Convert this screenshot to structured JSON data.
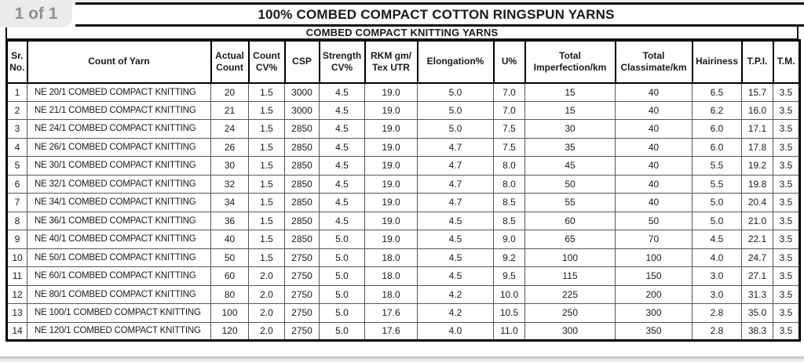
{
  "viewer": {
    "page_indicator": "1 of 1"
  },
  "document": {
    "title": "100% COMBED COMPACT COTTON RINGSPUN YARNS",
    "subtitle": "COMBED COMPACT KNITTING YARNS"
  },
  "table": {
    "columns": [
      "Sr.\nNo.",
      "Count of Yarn",
      "Actual\nCount",
      "Count\nCV%",
      "CSP",
      "Strength\nCV%",
      "RKM gm/\nTex UTR",
      "Elongation%",
      "U%",
      "Total\nImperfection/km",
      "Total\nClassimate/km",
      "Hairiness",
      "T.P.I.",
      "T.M."
    ],
    "rows": [
      [
        "1",
        "NE 20/1 COMBED COMPACT KNITTING",
        "20",
        "1.5",
        "3000",
        "4.5",
        "19.0",
        "5.0",
        "7.0",
        "15",
        "40",
        "6.5",
        "15.7",
        "3.5"
      ],
      [
        "2",
        "NE 21/1 COMBED COMPACT KNITTING",
        "21",
        "1.5",
        "3000",
        "4.5",
        "19.0",
        "5.0",
        "7.0",
        "15",
        "40",
        "6.2",
        "16.0",
        "3.5"
      ],
      [
        "3",
        "NE 24/1 COMBED COMPACT KNITTING",
        "24",
        "1.5",
        "2850",
        "4.5",
        "19.0",
        "5.0",
        "7.5",
        "30",
        "40",
        "6.0",
        "17.1",
        "3.5"
      ],
      [
        "4",
        "NE 26/1 COMBED COMPACT KNITTING",
        "26",
        "1.5",
        "2850",
        "4.5",
        "19.0",
        "4.7",
        "7.5",
        "35",
        "40",
        "6.0",
        "17.8",
        "3.5"
      ],
      [
        "5",
        "NE 30/1 COMBED COMPACT KNITTING",
        "30",
        "1.5",
        "2850",
        "4.5",
        "19.0",
        "4.7",
        "8.0",
        "45",
        "40",
        "5.5",
        "19.2",
        "3.5"
      ],
      [
        "6",
        "NE 32/1 COMBED COMPACT KNITTING",
        "32",
        "1.5",
        "2850",
        "4.5",
        "19.0",
        "4.7",
        "8.0",
        "50",
        "40",
        "5.5",
        "19.8",
        "3.5"
      ],
      [
        "7",
        "NE 34/1 COMBED COMPACT KNITTING",
        "34",
        "1.5",
        "2850",
        "4.5",
        "19.0",
        "4.7",
        "8.5",
        "55",
        "40",
        "5.0",
        "20.4",
        "3.5"
      ],
      [
        "8",
        "NE 36/1 COMBED COMPACT KNITTING",
        "36",
        "1.5",
        "2850",
        "4.5",
        "19.0",
        "4.5",
        "8.5",
        "60",
        "50",
        "5.0",
        "21.0",
        "3.5"
      ],
      [
        "9",
        "NE 40/1 COMBED COMPACT KNITTING",
        "40",
        "1.5",
        "2850",
        "5.0",
        "19.0",
        "4.5",
        "9.0",
        "65",
        "70",
        "4.5",
        "22.1",
        "3.5"
      ],
      [
        "10",
        "NE 50/1 COMBED COMPACT KNITTING",
        "50",
        "1.5",
        "2750",
        "5.0",
        "18.0",
        "4.5",
        "9.2",
        "100",
        "100",
        "4.0",
        "24.7",
        "3.5"
      ],
      [
        "11",
        "NE 60/1 COMBED COMPACT KNITTING",
        "60",
        "2.0",
        "2750",
        "5.0",
        "18.0",
        "4.5",
        "9.5",
        "115",
        "150",
        "3.0",
        "27.1",
        "3.5"
      ],
      [
        "12",
        "NE 80/1 COMBED COMPACT KNITTING",
        "80",
        "2.0",
        "2750",
        "5.0",
        "18.0",
        "4.2",
        "10.0",
        "225",
        "200",
        "3.0",
        "31.3",
        "3.5"
      ],
      [
        "13",
        "NE 100/1 COMBED COMPACT KNITTING",
        "100",
        "2.0",
        "2750",
        "5.0",
        "17.6",
        "4.2",
        "10.5",
        "250",
        "300",
        "2.8",
        "35.0",
        "3.5"
      ],
      [
        "14",
        "NE 120/1 COMBED COMPACT KNITTING",
        "120",
        "2.0",
        "2750",
        "5.0",
        "17.6",
        "4.0",
        "11.0",
        "300",
        "350",
        "2.8",
        "38.3",
        "3.5"
      ]
    ]
  },
  "colors": {
    "outer_border": "#000000",
    "grid_line": "#565656",
    "badge_background": "#ebebeb",
    "badge_text": "#8f8f8f",
    "text": "#1a1a1a"
  }
}
